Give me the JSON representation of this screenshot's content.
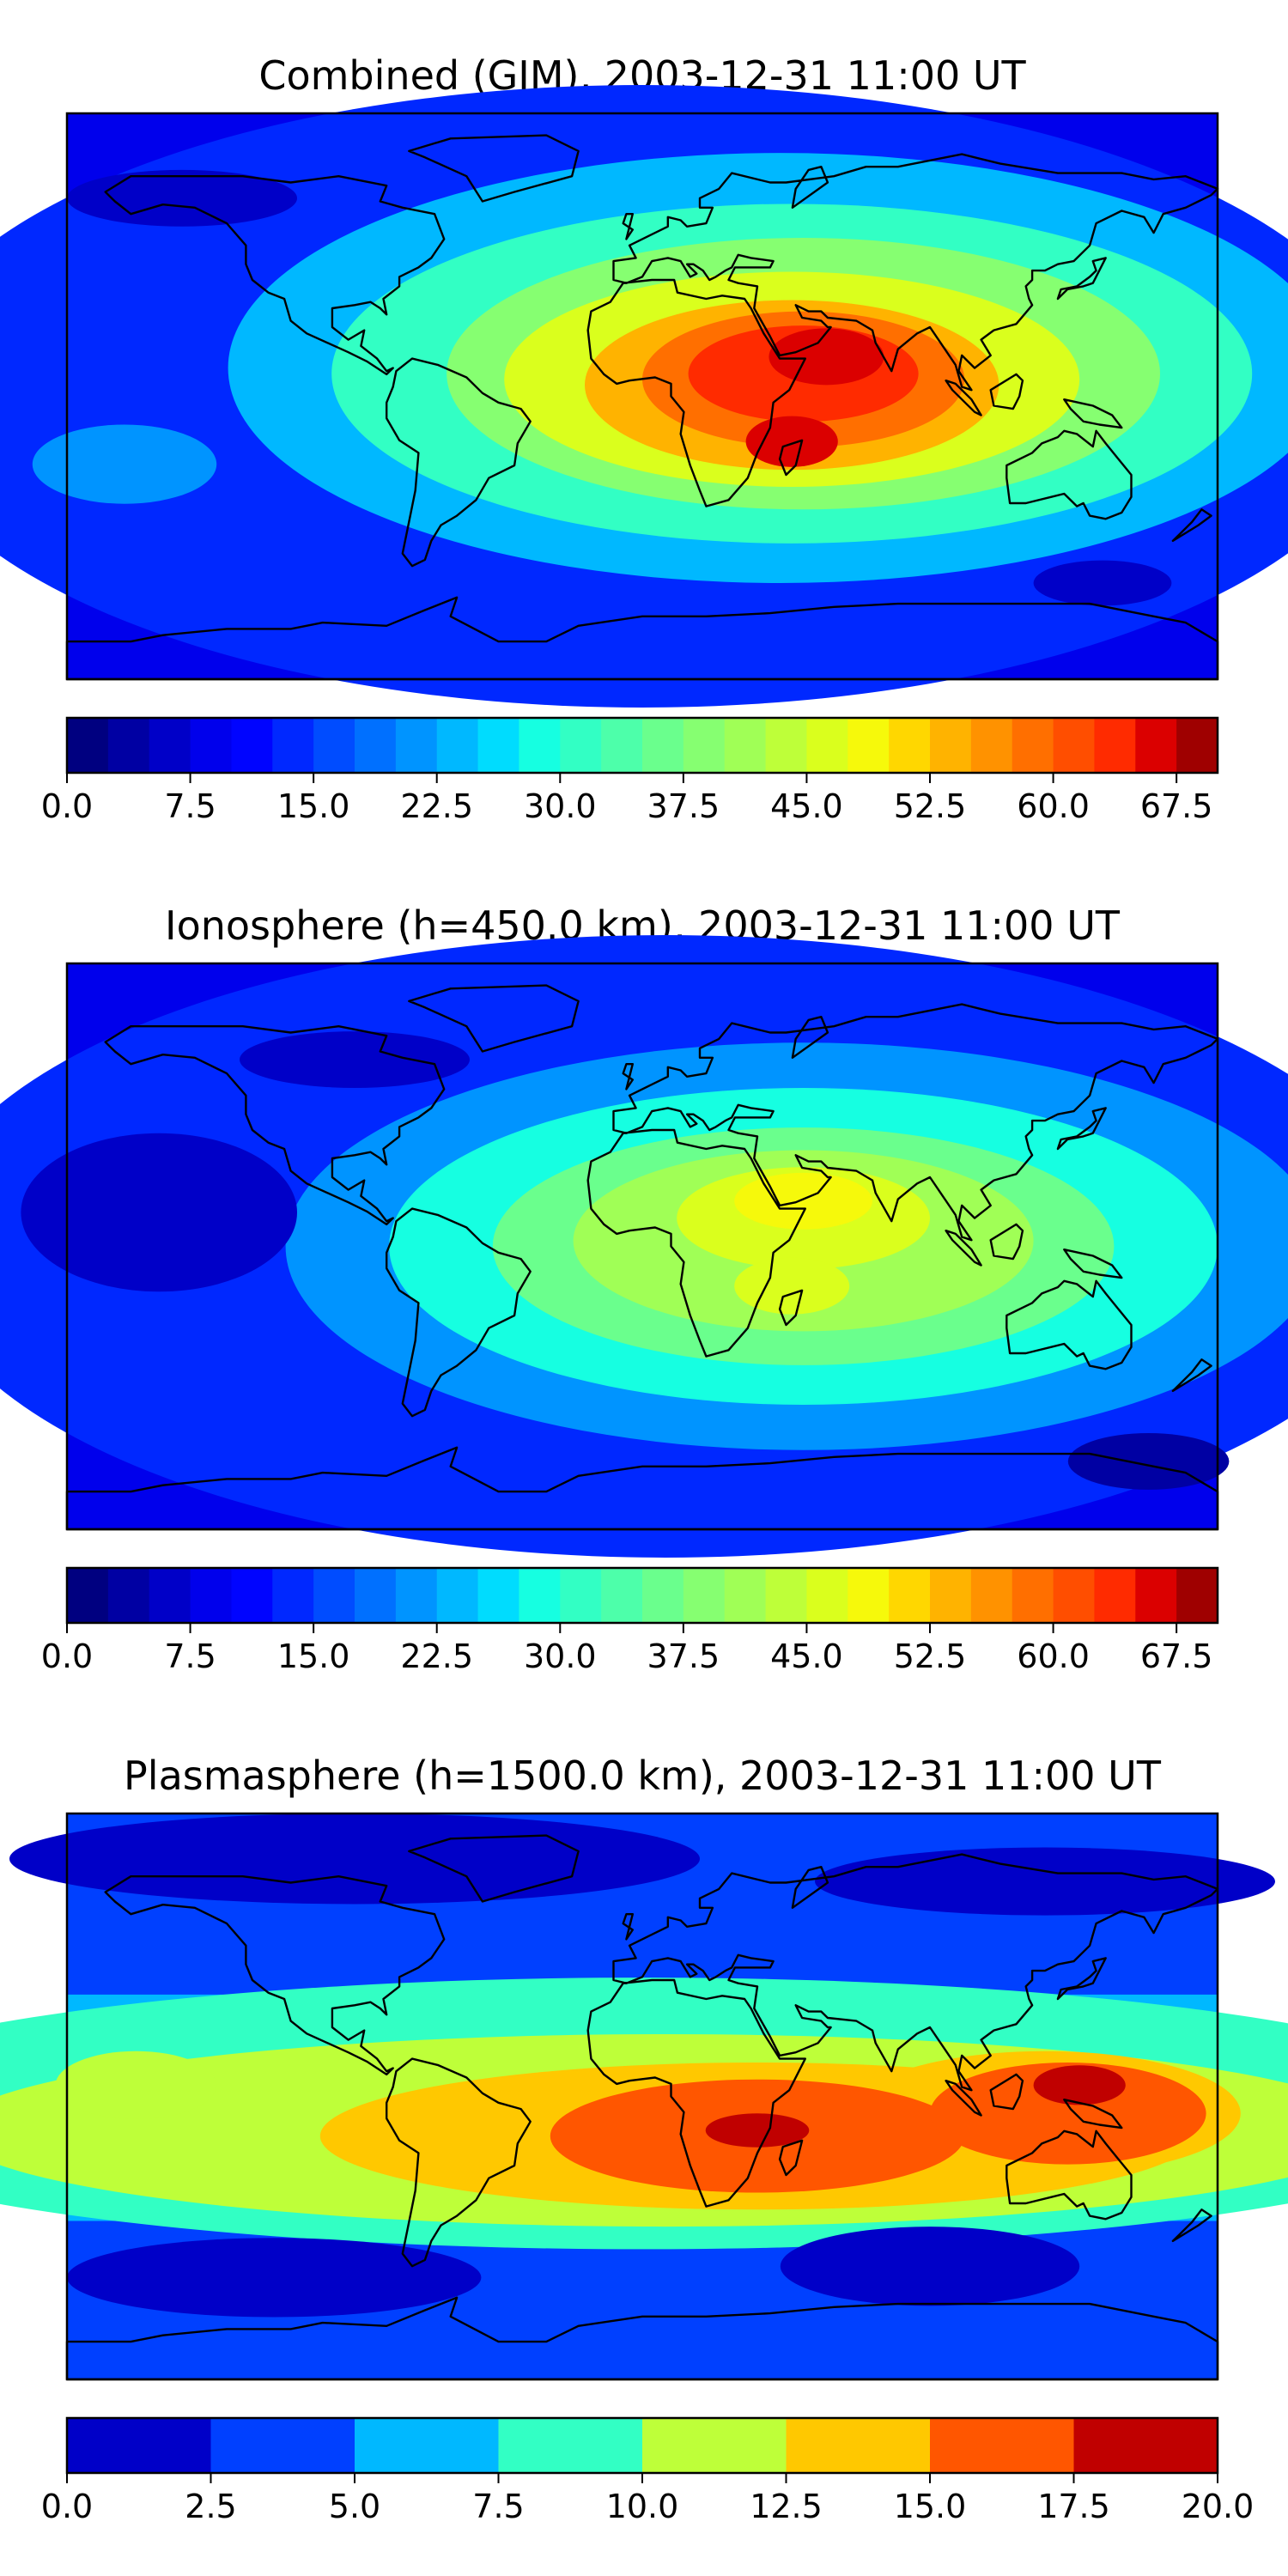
{
  "chart_data": [
    {
      "type": "heatmap",
      "title": "Combined (GIM), 2003-12-31 11:00 UT",
      "plot": "filled-contour world map (TEC)",
      "colorbar": {
        "range": [
          0,
          70
        ],
        "levels": 28,
        "tick_values": [
          0,
          7.5,
          15,
          22.5,
          30,
          37.5,
          45,
          52.5,
          60,
          67.5
        ],
        "tick_labels": [
          "0.0",
          "7.5",
          "15.0",
          "22.5",
          "30.0",
          "37.5",
          "45.0",
          "52.5",
          "60.0",
          "67.5"
        ]
      },
      "max_region": "East Africa / Arabian Peninsula",
      "approx_max": 62
    },
    {
      "type": "heatmap",
      "title": "Ionosphere  (h=450.0 km), 2003-12-31 11:00 UT",
      "plot": "filled-contour world map (TEC)",
      "colorbar": {
        "range": [
          0,
          70
        ],
        "levels": 28,
        "tick_values": [
          0,
          7.5,
          15,
          22.5,
          30,
          37.5,
          45,
          52.5,
          60,
          67.5
        ],
        "tick_labels": [
          "0.0",
          "7.5",
          "15.0",
          "22.5",
          "30.0",
          "37.5",
          "45.0",
          "52.5",
          "60.0",
          "67.5"
        ]
      },
      "max_region": "Arabian Peninsula",
      "approx_max": 47
    },
    {
      "type": "heatmap",
      "title": "Plasmasphere (h=1500.0 km), 2003-12-31 11:00 UT",
      "plot": "filled-contour world map (TEC)",
      "colorbar": {
        "range": [
          0,
          20
        ],
        "levels": 8,
        "tick_values": [
          0,
          2.5,
          5,
          7.5,
          10,
          12.5,
          15,
          17.5,
          20
        ],
        "tick_labels": [
          "0.0",
          "2.5",
          "5.0",
          "7.5",
          "10.0",
          "12.5",
          "15.0",
          "17.5",
          "20.0"
        ]
      },
      "max_region": "Central Africa and Indonesia / New Guinea",
      "approx_max": 16
    }
  ],
  "colors": {
    "jet28": [
      "#000080",
      "#0000a3",
      "#0000c8",
      "#0000ec",
      "#0004ff",
      "#0028ff",
      "#004cff",
      "#0070ff",
      "#0094ff",
      "#00b8ff",
      "#00dcfe",
      "#16ffe1",
      "#32ffc4",
      "#4dffaa",
      "#6aff8d",
      "#86ff71",
      "#a0ff56",
      "#beff39",
      "#daff1d",
      "#f6f90b",
      "#ffd700",
      "#ffb300",
      "#ff9200",
      "#ff6f00",
      "#ff4e00",
      "#ff2b00",
      "#db0000",
      "#9f0000"
    ],
    "jet8": [
      "#0000c8",
      "#0040ff",
      "#00b8ff",
      "#32ffc4",
      "#beff39",
      "#ffc800",
      "#ff5600",
      "#c00000"
    ],
    "land_outline": "#000000"
  }
}
